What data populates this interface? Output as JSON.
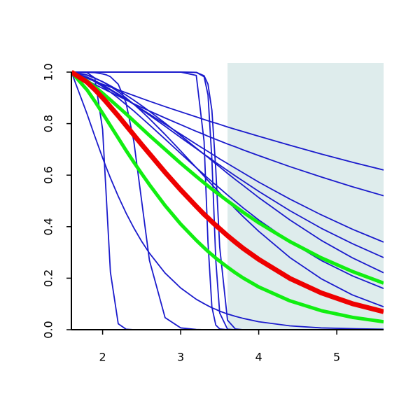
{
  "chart_data": {
    "type": "line",
    "x": [
      1.6,
      1.8,
      1.9,
      2.0,
      2.05,
      2.1,
      2.2,
      2.3,
      2.4,
      2.5,
      2.6,
      2.8,
      3.0,
      3.2,
      3.3,
      3.35,
      3.4,
      3.45,
      3.5,
      3.6,
      3.7,
      3.8,
      4.0,
      4.4,
      4.8,
      5.2,
      5.6
    ],
    "xlim": [
      1.6,
      5.6
    ],
    "ylim": [
      0,
      1
    ],
    "xticks": [
      2,
      3,
      4,
      5
    ],
    "yticks": [
      {
        "value": 0,
        "label": "0.0"
      },
      0.2,
      0.4,
      0.6,
      0.8,
      {
        "value": 1,
        "label": "1.0"
      }
    ],
    "shaded_region": {
      "xlim": [
        3.6,
        5.6
      ],
      "color": "#deecec"
    },
    "series": [
      {
        "color": "#1a1acc",
        "values": [
          1,
          0.976,
          0.965,
          0.953,
          0.948,
          0.942,
          0.931,
          0.92,
          0.909,
          0.898,
          0.887,
          0.866,
          0.846,
          0.826,
          0.816,
          0.811,
          0.806,
          0.802,
          0.797,
          0.787,
          0.778,
          0.769,
          0.751,
          0.716,
          0.682,
          0.65,
          0.62
        ]
      },
      {
        "color": "#1a1acc",
        "values": [
          1,
          0.968,
          0.952,
          0.937,
          0.929,
          0.922,
          0.907,
          0.892,
          0.877,
          0.863,
          0.849,
          0.822,
          0.796,
          0.77,
          0.758,
          0.751,
          0.745,
          0.739,
          0.733,
          0.721,
          0.71,
          0.698,
          0.676,
          0.633,
          0.593,
          0.555,
          0.52
        ]
      },
      {
        "color": "#1a1acc",
        "values": [
          1,
          0.978,
          0.963,
          0.947,
          0.939,
          0.93,
          0.912,
          0.894,
          0.875,
          0.856,
          0.837,
          0.798,
          0.759,
          0.72,
          0.701,
          0.692,
          0.682,
          0.673,
          0.663,
          0.645,
          0.627,
          0.609,
          0.573,
          0.507,
          0.446,
          0.39,
          0.34
        ]
      },
      {
        "color": "#1a1acc",
        "values": [
          1,
          0.981,
          0.967,
          0.951,
          0.942,
          0.933,
          0.915,
          0.895,
          0.875,
          0.854,
          0.833,
          0.79,
          0.746,
          0.703,
          0.681,
          0.671,
          0.66,
          0.649,
          0.639,
          0.618,
          0.597,
          0.577,
          0.537,
          0.462,
          0.394,
          0.334,
          0.28
        ]
      },
      {
        "color": "#1a1acc",
        "values": [
          1,
          0.988,
          0.976,
          0.963,
          0.955,
          0.947,
          0.93,
          0.911,
          0.891,
          0.87,
          0.848,
          0.802,
          0.754,
          0.705,
          0.681,
          0.669,
          0.656,
          0.644,
          0.632,
          0.607,
          0.583,
          0.56,
          0.513,
          0.426,
          0.347,
          0.279,
          0.221
        ]
      },
      {
        "color": "#1a1acc",
        "values": [
          1,
          0.98,
          0.963,
          0.944,
          0.933,
          0.922,
          0.899,
          0.874,
          0.849,
          0.822,
          0.795,
          0.74,
          0.684,
          0.629,
          0.602,
          0.588,
          0.575,
          0.562,
          0.549,
          0.523,
          0.498,
          0.473,
          0.426,
          0.342,
          0.269,
          0.209,
          0.16
        ]
      },
      {
        "color": "#1a1acc",
        "values": [
          1,
          0.989,
          0.977,
          0.962,
          0.954,
          0.944,
          0.924,
          0.9,
          0.875,
          0.848,
          0.819,
          0.758,
          0.694,
          0.629,
          0.596,
          0.579,
          0.563,
          0.547,
          0.531,
          0.5,
          0.469,
          0.439,
          0.382,
          0.28,
          0.198,
          0.135,
          0.089
        ]
      },
      {
        "color": "#1a1acc",
        "values": [
          1,
          0.838,
          0.751,
          0.667,
          0.627,
          0.589,
          0.518,
          0.453,
          0.395,
          0.343,
          0.297,
          0.22,
          0.162,
          0.118,
          0.101,
          0.093,
          0.085,
          0.079,
          0.072,
          0.061,
          0.052,
          0.044,
          0.031,
          0.015,
          0.007,
          0.004,
          0.002
        ]
      },
      {
        "color": "#1a1acc",
        "values": [
          1,
          0.998,
          0.977,
          0.777,
          0.5,
          0.223,
          0.023,
          0.002,
          0,
          0,
          0,
          0,
          0,
          0,
          0,
          0,
          0,
          0,
          0,
          0,
          0,
          0,
          0,
          0,
          0,
          0,
          0
        ]
      },
      {
        "color": "#1a1acc",
        "values": [
          1,
          0.999,
          0.998,
          0.993,
          0.989,
          0.982,
          0.953,
          0.881,
          0.731,
          0.5,
          0.269,
          0.047,
          0.007,
          0.001,
          0,
          0,
          0,
          0,
          0,
          0,
          0,
          0,
          0,
          0,
          0,
          0,
          0
        ]
      },
      {
        "color": "#1a1acc",
        "values": [
          1,
          1,
          1,
          1,
          1,
          1,
          1,
          1,
          1,
          1,
          1,
          1,
          1,
          0.987,
          0.731,
          0.339,
          0.088,
          0.018,
          0.003,
          0,
          0,
          0,
          0,
          0,
          0,
          0,
          0
        ]
      },
      {
        "color": "#1a1acc",
        "values": [
          1,
          1,
          1,
          1,
          1,
          1,
          1,
          1,
          1,
          1,
          1,
          1,
          1,
          0.999,
          0.982,
          0.912,
          0.661,
          0.269,
          0.065,
          0.002,
          0,
          0,
          0,
          0,
          0,
          0,
          0
        ]
      },
      {
        "color": "#1a1acc",
        "values": [
          1,
          1,
          1,
          1,
          1,
          1,
          1,
          1,
          1,
          1,
          1,
          1,
          1,
          0.999,
          0.986,
          0.953,
          0.852,
          0.622,
          0.321,
          0.037,
          0.003,
          0,
          0,
          0,
          0,
          0,
          0
        ]
      },
      {
        "color": "#11ee11",
        "values": [
          1,
          0.966,
          0.943,
          0.918,
          0.905,
          0.892,
          0.865,
          0.838,
          0.81,
          0.782,
          0.754,
          0.7,
          0.646,
          0.595,
          0.57,
          0.558,
          0.546,
          0.534,
          0.523,
          0.5,
          0.478,
          0.456,
          0.415,
          0.342,
          0.279,
          0.226,
          0.181
        ]
      },
      {
        "color": "#11ee11",
        "values": [
          1,
          0.931,
          0.887,
          0.84,
          0.816,
          0.792,
          0.744,
          0.696,
          0.65,
          0.606,
          0.563,
          0.482,
          0.41,
          0.347,
          0.318,
          0.304,
          0.291,
          0.278,
          0.266,
          0.243,
          0.221,
          0.201,
          0.166,
          0.112,
          0.074,
          0.048,
          0.031
        ]
      },
      {
        "color": "#ee0000",
        "values": [
          1,
          0.961,
          0.932,
          0.9,
          0.883,
          0.865,
          0.83,
          0.793,
          0.756,
          0.719,
          0.683,
          0.611,
          0.543,
          0.479,
          0.448,
          0.434,
          0.419,
          0.405,
          0.392,
          0.365,
          0.34,
          0.316,
          0.273,
          0.199,
          0.143,
          0.101,
          0.07
        ]
      }
    ]
  }
}
